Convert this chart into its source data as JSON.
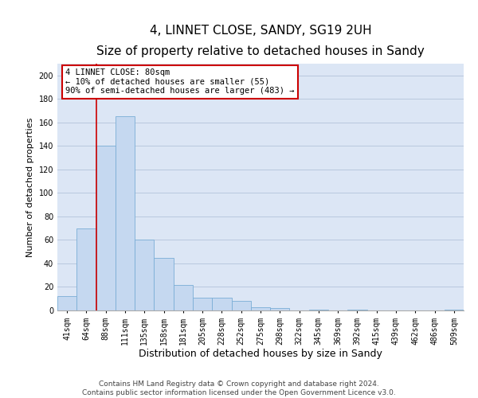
{
  "title": "4, LINNET CLOSE, SANDY, SG19 2UH",
  "subtitle": "Size of property relative to detached houses in Sandy",
  "xlabel": "Distribution of detached houses by size in Sandy",
  "ylabel": "Number of detached properties",
  "footer1": "Contains HM Land Registry data © Crown copyright and database right 2024.",
  "footer2": "Contains public sector information licensed under the Open Government Licence v3.0.",
  "annotation_title": "4 LINNET CLOSE: 80sqm",
  "annotation_line1": "← 10% of detached houses are smaller (55)",
  "annotation_line2": "90% of semi-detached houses are larger (483) →",
  "bar_color": "#c5d8f0",
  "bar_edge_color": "#7aaed6",
  "background_color": "#dce6f5",
  "red_line_color": "#cc0000",
  "annotation_box_color": "#ffffff",
  "annotation_box_edge_color": "#cc0000",
  "categories": [
    "41sqm",
    "64sqm",
    "88sqm",
    "111sqm",
    "135sqm",
    "158sqm",
    "181sqm",
    "205sqm",
    "228sqm",
    "252sqm",
    "275sqm",
    "298sqm",
    "322sqm",
    "345sqm",
    "369sqm",
    "392sqm",
    "415sqm",
    "439sqm",
    "462sqm",
    "486sqm",
    "509sqm"
  ],
  "values": [
    12,
    70,
    140,
    165,
    60,
    45,
    22,
    11,
    11,
    8,
    3,
    2,
    0,
    1,
    0,
    1,
    0,
    0,
    0,
    0,
    1
  ],
  "red_line_x": 1.5,
  "ylim": [
    0,
    210
  ],
  "yticks": [
    0,
    20,
    40,
    60,
    80,
    100,
    120,
    140,
    160,
    180,
    200
  ],
  "grid_color": "#b8c8de",
  "title_fontsize": 11,
  "subtitle_fontsize": 9,
  "xlabel_fontsize": 9,
  "ylabel_fontsize": 8,
  "tick_fontsize": 7,
  "footer_fontsize": 6.5,
  "annotation_fontsize": 7.5
}
